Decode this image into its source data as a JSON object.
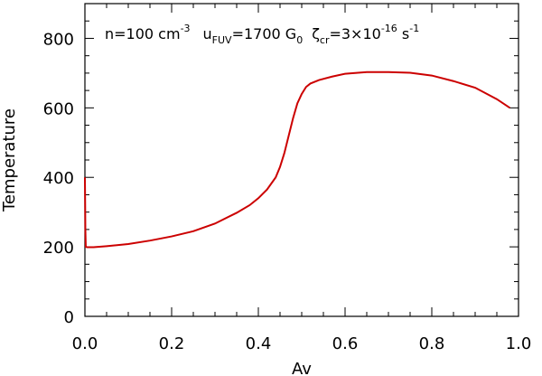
{
  "chart_data": {
    "type": "line",
    "title": "",
    "annotation": {
      "parts": [
        {
          "text": "n=100 cm",
          "sup": "-3"
        },
        {
          "text": "u",
          "sub": "FUV"
        },
        {
          "text": "=1700 G",
          "sub": "0"
        },
        {
          "text": "ζ",
          "sub": "cr"
        },
        {
          "text": "=3×10",
          "sup": "-16"
        },
        {
          "text": " s",
          "sup": "-1"
        }
      ]
    },
    "xlabel": "Av",
    "ylabel": "Temperature",
    "xlim": [
      0.0,
      1.0
    ],
    "ylim": [
      0,
      900
    ],
    "xticks": [
      "0.0",
      "0.2",
      "0.4",
      "0.6",
      "0.8",
      "1.0"
    ],
    "xtick_values": [
      0.0,
      0.2,
      0.4,
      0.6,
      0.8,
      1.0
    ],
    "yticks": [
      "0",
      "200",
      "400",
      "600",
      "800"
    ],
    "ytick_values": [
      0,
      200,
      400,
      600,
      800
    ],
    "grid": false,
    "series": [
      {
        "color": "#cc0000",
        "x": [
          0.0,
          0.0005,
          0.001,
          0.002,
          0.005,
          0.02,
          0.05,
          0.1,
          0.15,
          0.2,
          0.25,
          0.3,
          0.35,
          0.38,
          0.4,
          0.42,
          0.44,
          0.45,
          0.46,
          0.47,
          0.48,
          0.49,
          0.5,
          0.51,
          0.52,
          0.54,
          0.57,
          0.6,
          0.65,
          0.7,
          0.75,
          0.8,
          0.85,
          0.9,
          0.95,
          0.98
        ],
        "y": [
          400,
          330,
          250,
          200,
          199,
          199,
          202,
          208,
          218,
          230,
          245,
          267,
          298,
          320,
          340,
          365,
          400,
          430,
          470,
          520,
          570,
          613,
          640,
          660,
          670,
          680,
          690,
          698,
          703,
          703,
          701,
          693,
          677,
          658,
          625,
          600
        ]
      }
    ]
  }
}
